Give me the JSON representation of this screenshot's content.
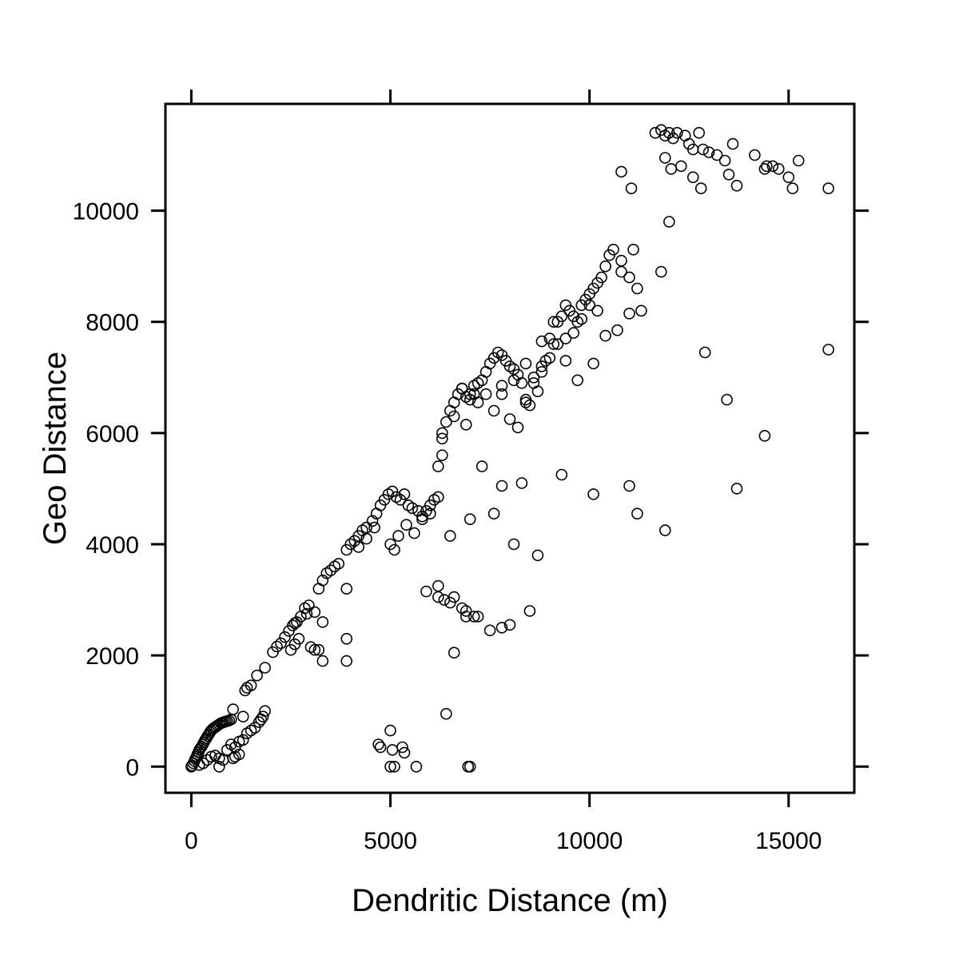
{
  "chart_data": {
    "type": "scatter",
    "title": "",
    "xlabel": "Dendritic Distance (m)",
    "ylabel": "Geo Distance",
    "xlim": [
      -650,
      16650
    ],
    "ylim": [
      -470,
      11920
    ],
    "xticks": [
      0,
      5000,
      10000,
      15000
    ],
    "yticks": [
      0,
      2000,
      4000,
      6000,
      8000,
      10000
    ],
    "xtick_labels": [
      "0",
      "5000",
      "10000",
      "15000"
    ],
    "ytick_labels": [
      "0",
      "2000",
      "4000",
      "6000",
      "8000",
      "10000"
    ],
    "grid": false,
    "legend": "none",
    "marker": "open-circle",
    "colors": {
      "marker_stroke": "#000000",
      "axis": "#000000",
      "background": "#ffffff"
    },
    "series": [
      {
        "x": [
          0,
          20,
          50,
          80,
          100,
          130,
          150,
          180,
          200,
          230,
          260,
          290,
          320,
          350,
          380,
          410,
          440,
          470,
          500,
          540,
          580,
          620,
          660,
          700,
          740,
          780,
          820,
          860,
          900,
          950,
          1000,
          1050,
          200,
          300,
          400,
          500,
          600,
          700,
          800,
          900,
          1100,
          1200,
          1300,
          1400,
          1500,
          1600,
          1700,
          1750,
          1800,
          1850,
          1000,
          1100,
          1200,
          1300,
          1050,
          700,
          1350,
          1400,
          1500,
          1650,
          1850,
          2050,
          2150,
          2250,
          2350,
          2450,
          2550,
          2650,
          2750,
          2850,
          2950,
          3100,
          3200,
          3300,
          3400,
          3500,
          3600,
          3700,
          3900,
          4000,
          4100,
          4200,
          4300,
          4400,
          4550,
          4650,
          4750,
          4850,
          4950,
          5050,
          5150,
          5250,
          5350,
          5450,
          5550,
          5700,
          5800,
          5900,
          6000,
          6100,
          6200,
          2500,
          2600,
          2700,
          3000,
          3100,
          3200,
          3300,
          3900,
          3900,
          2600,
          2900,
          3300,
          3900,
          4200,
          4400,
          4600,
          5000,
          5100,
          5200,
          5400,
          5600,
          5800,
          6000,
          6200,
          6300,
          6300,
          6400,
          6500,
          6600,
          6700,
          6800,
          6900,
          7000,
          7100,
          7200,
          7300,
          7400,
          7500,
          7600,
          7700,
          7800,
          7900,
          8000,
          8100,
          8200,
          8300,
          8400,
          8500,
          8600,
          8700,
          8800,
          8900,
          9000,
          9100,
          9200,
          9300,
          9400,
          9500,
          9600,
          9700,
          9800,
          9900,
          10000,
          10100,
          10200,
          10300,
          10400,
          10500,
          10600,
          10800,
          11000,
          11200,
          6300,
          6600,
          6800,
          7000,
          7200,
          7600,
          7800,
          8000,
          8200,
          8400,
          8600,
          8800,
          9000,
          9200,
          9400,
          9600,
          9800,
          10000,
          10200,
          10800,
          11100,
          12900,
          11650,
          11800,
          11900,
          12000,
          12100,
          12200,
          12400,
          12500,
          12600,
          12750,
          12850,
          13000,
          13200,
          13400,
          13600,
          14150,
          14400,
          14600,
          14750,
          15000,
          15250,
          10800,
          11050,
          11900,
          12050,
          12300,
          12600,
          12800,
          13500,
          13700,
          14450,
          15100,
          16000,
          6800,
          6900,
          7100,
          7400,
          7800,
          8100,
          8400,
          8800,
          9100,
          9400,
          9700,
          10100,
          10400,
          10700,
          11000,
          11300,
          11800,
          12000,
          13700,
          14400,
          13450,
          16000,
          11000,
          11200,
          11900,
          7000,
          7300,
          7600,
          7800,
          8100,
          8300,
          8700,
          9300,
          10100,
          5900,
          6200,
          6500,
          6900,
          7100,
          6200,
          6350,
          6500,
          6600,
          6800,
          6900,
          7200,
          7500,
          7800,
          8000,
          8500,
          6600,
          6400,
          4700,
          4750,
          5000,
          5050,
          5300,
          5350,
          5100,
          5000,
          5650,
          6950,
          7000
        ],
        "y": [
          0,
          20,
          60,
          100,
          140,
          180,
          220,
          260,
          300,
          330,
          360,
          400,
          440,
          480,
          510,
          550,
          580,
          620,
          650,
          680,
          700,
          720,
          740,
          760,
          780,
          790,
          800,
          810,
          820,
          830,
          850,
          1030,
          30,
          60,
          120,
          180,
          200,
          150,
          120,
          300,
          180,
          220,
          480,
          600,
          650,
          700,
          800,
          850,
          900,
          1000,
          400,
          350,
          450,
          900,
          150,
          0,
          1370,
          1420,
          1460,
          1640,
          1780,
          2060,
          2160,
          2220,
          2330,
          2440,
          2540,
          2600,
          2700,
          2850,
          2900,
          2780,
          3200,
          3350,
          3480,
          3530,
          3600,
          3650,
          3900,
          4000,
          4060,
          4150,
          4250,
          4300,
          4420,
          4550,
          4700,
          4800,
          4900,
          4950,
          4850,
          4800,
          4900,
          4700,
          4650,
          4600,
          4500,
          4600,
          4700,
          4800,
          4850,
          2100,
          2200,
          2300,
          2150,
          2100,
          2100,
          2600,
          2300,
          1900,
          2580,
          2750,
          1900,
          3200,
          3950,
          4100,
          4300,
          4000,
          3900,
          4150,
          4350,
          4200,
          4450,
          4550,
          5400,
          5600,
          6000,
          6200,
          6400,
          6550,
          6700,
          6800,
          6650,
          6700,
          6850,
          6900,
          6950,
          7100,
          7250,
          7350,
          7450,
          7400,
          7300,
          7200,
          7150,
          7050,
          6900,
          6600,
          6500,
          6900,
          6750,
          7100,
          7300,
          7700,
          7600,
          8000,
          8100,
          8300,
          8200,
          8100,
          8000,
          8300,
          8400,
          8500,
          8600,
          8700,
          8800,
          9000,
          9200,
          9300,
          8900,
          8800,
          8600,
          5900,
          6300,
          6800,
          6600,
          6550,
          6400,
          6700,
          6250,
          6100,
          6550,
          7000,
          7200,
          7350,
          7600,
          7700,
          7800,
          8050,
          8300,
          8200,
          9100,
          9300,
          7450,
          11400,
          11450,
          11350,
          11400,
          11300,
          11400,
          11350,
          11200,
          11100,
          11400,
          11100,
          11050,
          11000,
          10900,
          11200,
          11000,
          10750,
          10800,
          10750,
          10600,
          10900,
          10700,
          10400,
          10950,
          10750,
          10800,
          10600,
          10400,
          10650,
          10450,
          10800,
          10400,
          10400,
          6800,
          6150,
          6700,
          6700,
          6850,
          6950,
          7250,
          7650,
          8000,
          7300,
          6950,
          7250,
          7750,
          7850,
          8150,
          8200,
          8900,
          9800,
          5000,
          5950,
          6600,
          7500,
          5050,
          4550,
          4250,
          4450,
          5400,
          4550,
          5050,
          4000,
          5100,
          3800,
          5250,
          4900,
          3150,
          3250,
          4150,
          2700,
          2700,
          3050,
          3000,
          2950,
          3050,
          2850,
          2800,
          2700,
          2450,
          2500,
          2550,
          2800,
          2050,
          950,
          400,
          350,
          650,
          300,
          350,
          250,
          0,
          0,
          0,
          0,
          0
        ]
      }
    ]
  }
}
